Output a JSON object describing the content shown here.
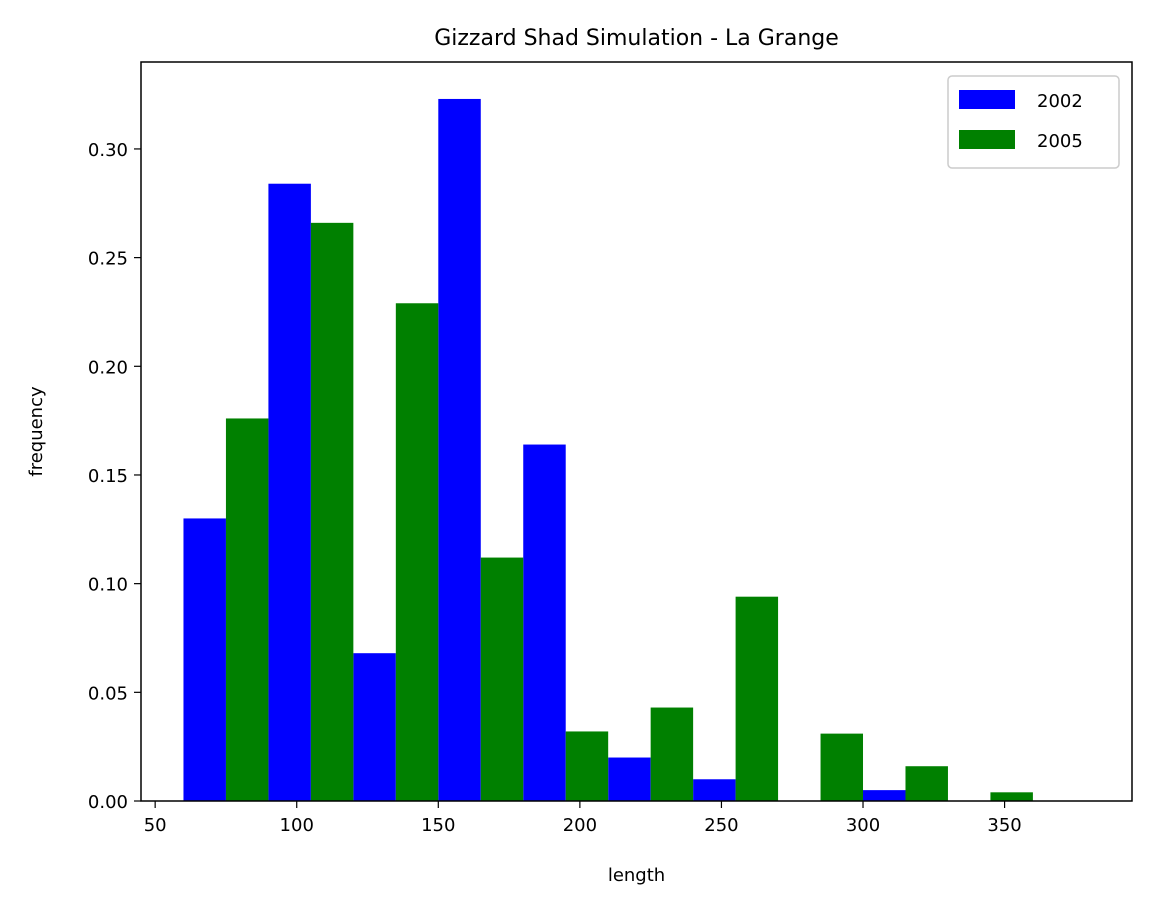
{
  "chart_data": {
    "type": "bar",
    "title": "Gizzard Shad Simulation - La Grange",
    "xlabel": "length",
    "ylabel": "frequency",
    "xlim": [
      45,
      395
    ],
    "ylim": [
      0,
      0.34
    ],
    "xticks": [
      50,
      100,
      150,
      200,
      250,
      300,
      350
    ],
    "xtick_labels": [
      "50",
      "100",
      "150",
      "200",
      "250",
      "300",
      "350"
    ],
    "yticks": [
      0.0,
      0.05,
      0.1,
      0.15,
      0.2,
      0.25,
      0.3
    ],
    "ytick_labels": [
      "0.00",
      "0.05",
      "0.10",
      "0.15",
      "0.20",
      "0.25",
      "0.30"
    ],
    "bin_edges": [
      60,
      90,
      120,
      150,
      180,
      210,
      240,
      270,
      300,
      330,
      360,
      390
    ],
    "legend_position": "top-right",
    "grid": false,
    "series": [
      {
        "name": "2002",
        "color": "#0000ff",
        "values": [
          0.13,
          0.284,
          0.068,
          0.323,
          0.164,
          0.02,
          0.01,
          0.0,
          0.005,
          0.0,
          0.0
        ]
      },
      {
        "name": "2005",
        "color": "#008000",
        "values": [
          0.176,
          0.266,
          0.229,
          0.112,
          0.032,
          0.043,
          0.094,
          0.031,
          0.016,
          0.004,
          0.0
        ]
      }
    ]
  }
}
